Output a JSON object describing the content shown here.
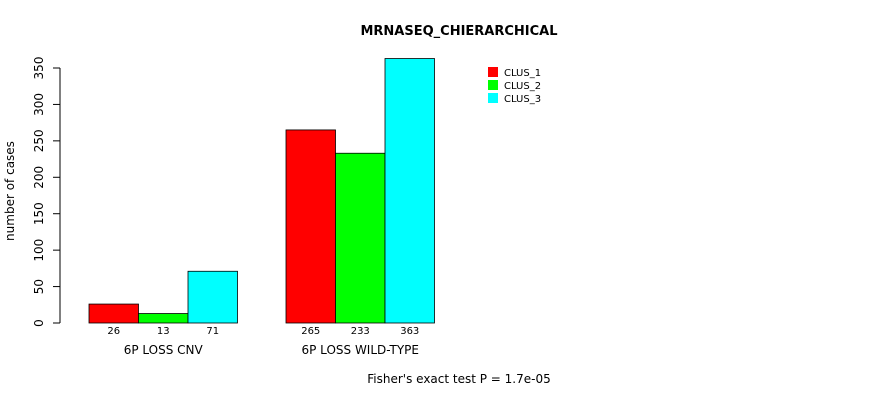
{
  "chart_data": {
    "type": "bar",
    "title": "MRNASEQ_CHIERARCHICAL",
    "xlabel": "",
    "ylabel": "number of cases",
    "ylim": [
      0,
      350
    ],
    "yticks": [
      "0",
      "50",
      "100",
      "150",
      "200",
      "250",
      "300",
      "350"
    ],
    "categories": [
      "6P LOSS CNV",
      "6P LOSS WILD-TYPE"
    ],
    "series": [
      {
        "name": "CLUS_1",
        "color": "#ff0000",
        "values": [
          26,
          265
        ],
        "labels": [
          "26",
          "265"
        ]
      },
      {
        "name": "CLUS_2",
        "color": "#00ff00",
        "values": [
          13,
          233
        ],
        "labels": [
          "13",
          "233"
        ]
      },
      {
        "name": "CLUS_3",
        "color": "#00ffff",
        "values": [
          71,
          363
        ],
        "labels": [
          "71",
          "363"
        ]
      }
    ],
    "legend_position": "top-right",
    "footnote": "Fisher's exact test P = 1.7e-05"
  }
}
